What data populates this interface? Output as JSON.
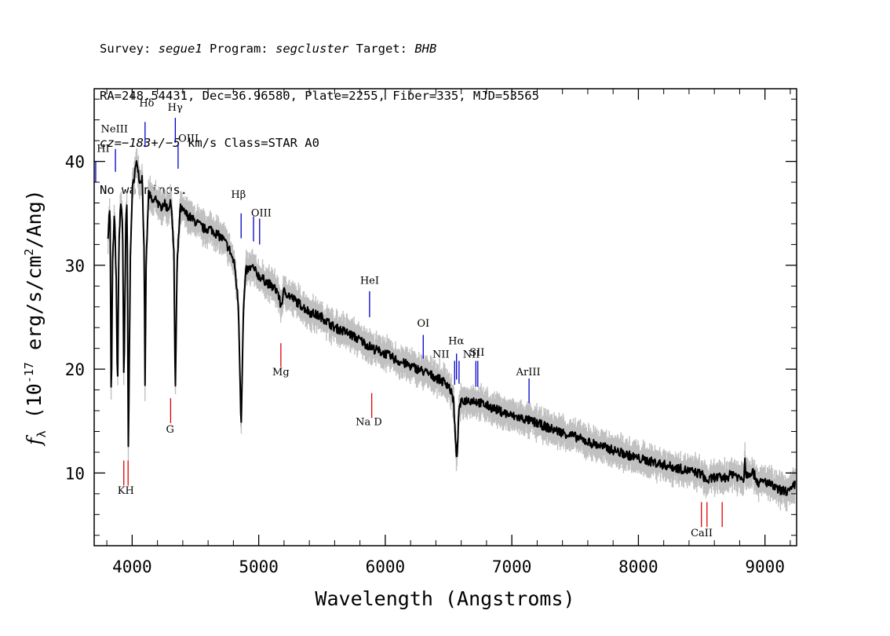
{
  "header": {
    "line1": {
      "survey_label": "Survey: ",
      "survey": "segue1",
      "program_label": " Program: ",
      "program": "segcluster",
      "target_label": " Target: ",
      "target": "BHB"
    },
    "line2": "RA=248.54431, Dec=36.96580, Plate=2255, Fiber=335, MJD=53565",
    "line3": {
      "cz": "cz=−183+/−5",
      "rest": " km/s Class=STAR A0"
    },
    "line4": "No warnings."
  },
  "chart_data": {
    "type": "line",
    "title": "",
    "xlabel": "Wavelength (Angstroms)",
    "ylabel_symbol": "f",
    "ylabel_sub": "λ",
    "ylabel_rest": "(10",
    "ylabel_exp": "-17",
    "ylabel_tail": "erg/s/cm",
    "ylabel_exp2": "2",
    "ylabel_end": "/Ang)",
    "xlim": [
      3700,
      9250
    ],
    "ylim": [
      3,
      47
    ],
    "xticks": [
      4000,
      5000,
      6000,
      7000,
      8000,
      9000
    ],
    "yticks": [
      10,
      20,
      30,
      40
    ],
    "series": [
      {
        "color": "#000000",
        "points": [
          [
            3810,
            33
          ],
          [
            3825,
            36
          ],
          [
            3835,
            16
          ],
          [
            3845,
            30
          ],
          [
            3860,
            35
          ],
          [
            3875,
            28
          ],
          [
            3885,
            17.5
          ],
          [
            3895,
            32
          ],
          [
            3910,
            36
          ],
          [
            3925,
            34
          ],
          [
            3935,
            18
          ],
          [
            3950,
            34
          ],
          [
            3960,
            36
          ],
          [
            3970,
            12.3
          ],
          [
            3985,
            30
          ],
          [
            4000,
            37
          ],
          [
            4020,
            39
          ],
          [
            4040,
            40
          ],
          [
            4060,
            38
          ],
          [
            4080,
            38.5
          ],
          [
            4095,
            31
          ],
          [
            4102,
            18
          ],
          [
            4110,
            30
          ],
          [
            4130,
            37
          ],
          [
            4160,
            36
          ],
          [
            4190,
            36.5
          ],
          [
            4220,
            35.5
          ],
          [
            4250,
            36
          ],
          [
            4280,
            35.5
          ],
          [
            4310,
            36
          ],
          [
            4330,
            31
          ],
          [
            4341,
            17.5
          ],
          [
            4355,
            30
          ],
          [
            4380,
            35.5
          ],
          [
            4420,
            35
          ],
          [
            4470,
            34.5
          ],
          [
            4520,
            34
          ],
          [
            4570,
            33.5
          ],
          [
            4620,
            33.5
          ],
          [
            4670,
            33
          ],
          [
            4720,
            32.5
          ],
          [
            4770,
            31.5
          ],
          [
            4810,
            30
          ],
          [
            4840,
            26
          ],
          [
            4861,
            14.5
          ],
          [
            4880,
            26
          ],
          [
            4900,
            29.5
          ],
          [
            4950,
            29.8
          ],
          [
            5000,
            29
          ],
          [
            5050,
            28.5
          ],
          [
            5100,
            28
          ],
          [
            5150,
            27.5
          ],
          [
            5175,
            26
          ],
          [
            5200,
            27.5
          ],
          [
            5300,
            26.5
          ],
          [
            5400,
            25.5
          ],
          [
            5500,
            25
          ],
          [
            5600,
            24
          ],
          [
            5700,
            23.5
          ],
          [
            5800,
            22.8
          ],
          [
            5900,
            22
          ],
          [
            6000,
            21.5
          ],
          [
            6100,
            20.8
          ],
          [
            6200,
            20.3
          ],
          [
            6300,
            19.8
          ],
          [
            6400,
            19.2
          ],
          [
            6500,
            18.5
          ],
          [
            6540,
            17
          ],
          [
            6563,
            11
          ],
          [
            6585,
            16.5
          ],
          [
            6620,
            17
          ],
          [
            6700,
            17
          ],
          [
            6800,
            16.5
          ],
          [
            6900,
            16
          ],
          [
            7000,
            15.5
          ],
          [
            7100,
            15.2
          ],
          [
            7200,
            14.8
          ],
          [
            7300,
            14.3
          ],
          [
            7400,
            13.9
          ],
          [
            7500,
            13.5
          ],
          [
            7600,
            13
          ],
          [
            7700,
            12.6
          ],
          [
            7800,
            12.2
          ],
          [
            7900,
            11.8
          ],
          [
            8000,
            11.4
          ],
          [
            8100,
            11.1
          ],
          [
            8200,
            10.8
          ],
          [
            8300,
            10.5
          ],
          [
            8400,
            10.2
          ],
          [
            8500,
            9.9
          ],
          [
            8542,
            9.2
          ],
          [
            8600,
            9.6
          ],
          [
            8662,
            9.5
          ],
          [
            8700,
            9.6
          ],
          [
            8750,
            10
          ],
          [
            8800,
            9.5
          ],
          [
            8835,
            9.5
          ],
          [
            8840,
            12
          ],
          [
            8848,
            9.8
          ],
          [
            8900,
            10.2
          ],
          [
            8950,
            9
          ],
          [
            9000,
            9.2
          ],
          [
            9050,
            8.8
          ],
          [
            9100,
            8.4
          ],
          [
            9150,
            8.3
          ],
          [
            9200,
            8.2
          ],
          [
            9240,
            9
          ]
        ]
      }
    ],
    "lines": [
      {
        "label": "HI",
        "x": 3712,
        "y0": 38,
        "y1": 40,
        "color": "#0000c8",
        "lx": 3720,
        "ly": 40.9,
        "anchor": "start"
      },
      {
        "label": "NeIII",
        "x": 3868,
        "y0": 39,
        "y1": 41.2,
        "color": "#0000c8",
        "lx": 3860,
        "ly": 42.8,
        "anchor": "middle"
      },
      {
        "label": "Hδ",
        "x": 4102,
        "y0": 41.4,
        "y1": 43.8,
        "color": "#0000c8",
        "lx": 4115,
        "ly": 45.3,
        "anchor": "middle"
      },
      {
        "label": "Hγ",
        "x": 4341,
        "y0": 41.8,
        "y1": 44.2,
        "color": "#0000c8",
        "lx": 4340,
        "ly": 44.9,
        "anchor": "middle"
      },
      {
        "label": "OIII",
        "x": 4363,
        "y0": 39.3,
        "y1": 41.7,
        "color": "#0000c8",
        "lx": 4445,
        "ly": 41.9,
        "anchor": "middle"
      },
      {
        "label": "Hβ",
        "x": 4861,
        "y0": 32.6,
        "y1": 35,
        "color": "#0000c8",
        "lx": 4840,
        "ly": 36.5,
        "anchor": "middle"
      },
      {
        "label": "OIII",
        "x": 4959,
        "y0": 32.3,
        "y1": 34.7,
        "color": "#0000c8",
        "lx": 5020,
        "ly": 34.7,
        "anchor": "middle"
      },
      {
        "label": "OIII",
        "x": 5007,
        "y0": 32,
        "y1": 34.5,
        "color": "#0000c8",
        "lx": null,
        "ly": null,
        "anchor": "middle"
      },
      {
        "label": "HeI",
        "x": 5876,
        "y0": 25,
        "y1": 27.5,
        "color": "#0000c8",
        "lx": 5876,
        "ly": 28.2,
        "anchor": "middle"
      },
      {
        "label": "OI",
        "x": 6300,
        "y0": 21,
        "y1": 23.3,
        "color": "#0000c8",
        "lx": 6300,
        "ly": 24.1,
        "anchor": "middle"
      },
      {
        "label": "NII",
        "x": 6548,
        "y0": 18.5,
        "y1": 20.8,
        "color": "#0000c8",
        "lx": 6440,
        "ly": 21.1,
        "anchor": "middle"
      },
      {
        "label": "Hα",
        "x": 6563,
        "y0": 19,
        "y1": 21.5,
        "color": "#0000c8",
        "lx": 6560,
        "ly": 22.4,
        "anchor": "middle"
      },
      {
        "label": "NII",
        "x": 6583,
        "y0": 18.6,
        "y1": 20.8,
        "color": "#0000c8",
        "lx": 6680,
        "ly": 21.1,
        "anchor": "middle"
      },
      {
        "label": "SII",
        "x": 6716,
        "y0": 18.3,
        "y1": 20.8,
        "color": "#0000c8",
        "lx": 6725,
        "ly": 21.3,
        "anchor": "middle"
      },
      {
        "label": "SII",
        "x": 6731,
        "y0": 18.3,
        "y1": 20.8,
        "color": "#0000c8",
        "lx": null,
        "ly": null,
        "anchor": "middle"
      },
      {
        "label": "ArIII",
        "x": 7136,
        "y0": 16.7,
        "y1": 19.1,
        "color": "#0000c8",
        "lx": 7130,
        "ly": 19.4,
        "anchor": "middle"
      },
      {
        "label": "Mg",
        "x": 5175,
        "y0": 20.2,
        "y1": 22.5,
        "color": "#e00000",
        "lx": 5175,
        "ly": 19.4,
        "anchor": "middle"
      },
      {
        "label": "Na D",
        "x": 5893,
        "y0": 15.3,
        "y1": 17.7,
        "color": "#e00000",
        "lx": 5870,
        "ly": 14.6,
        "anchor": "middle"
      },
      {
        "label": "G",
        "x": 4304,
        "y0": 14.8,
        "y1": 17.2,
        "color": "#e00000",
        "lx": 4300,
        "ly": 13.9,
        "anchor": "middle"
      },
      {
        "label": "KH",
        "x": 3934,
        "y0": 8.8,
        "y1": 11.2,
        "color": "#e00000",
        "lx": 3950,
        "ly": 8.0,
        "anchor": "middle"
      },
      {
        "label": "",
        "x": 3968,
        "y0": 8.8,
        "y1": 11.2,
        "color": "#e00000",
        "lx": null,
        "ly": null,
        "anchor": "middle"
      },
      {
        "label": "CaII",
        "x": 8498,
        "y0": 4.8,
        "y1": 7.2,
        "color": "#e00000",
        "lx": 8500,
        "ly": 3.9,
        "anchor": "middle"
      },
      {
        "label": "",
        "x": 8542,
        "y0": 4.8,
        "y1": 7.2,
        "color": "#e00000",
        "lx": null,
        "ly": null,
        "anchor": "middle"
      },
      {
        "label": "",
        "x": 8662,
        "y0": 4.8,
        "y1": 7.2,
        "color": "#e00000",
        "lx": null,
        "ly": null,
        "anchor": "middle"
      }
    ],
    "grid": false,
    "colors": {
      "flux": "#000000",
      "error_band": "#c0c0c0",
      "emission": "#0000c8",
      "absorption": "#e00000"
    }
  }
}
